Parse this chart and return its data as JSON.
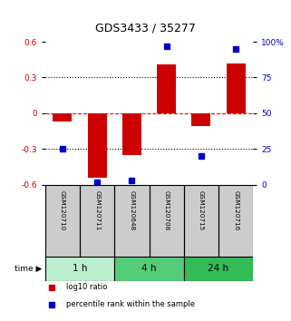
{
  "title": "GDS3433 / 35277",
  "samples": [
    "GSM120710",
    "GSM120711",
    "GSM120648",
    "GSM120708",
    "GSM120715",
    "GSM120716"
  ],
  "log10_ratio": [
    -0.07,
    -0.54,
    -0.35,
    0.41,
    -0.11,
    0.42
  ],
  "percentile_rank": [
    25,
    2,
    3,
    97,
    20,
    95
  ],
  "ylim_left": [
    -0.6,
    0.6
  ],
  "ylim_right": [
    0,
    100
  ],
  "yticks_left": [
    -0.6,
    -0.3,
    0,
    0.3,
    0.6
  ],
  "ytick_labels_left": [
    "-0.6",
    "-0.3",
    "0",
    "0.3",
    "0.6"
  ],
  "yticks_right": [
    0,
    25,
    50,
    75,
    100
  ],
  "ytick_labels_right": [
    "0",
    "25",
    "50",
    "75",
    "100%"
  ],
  "hlines": [
    0.3,
    0,
    -0.3
  ],
  "hline_styles": [
    "dotted",
    "dashed",
    "dotted"
  ],
  "hline_colors": [
    "black",
    "red",
    "black"
  ],
  "bar_color": "#cc0000",
  "dot_color": "#0000cc",
  "time_groups": [
    {
      "label": "1 h",
      "start": 0,
      "end": 2,
      "color": "#bbeecc"
    },
    {
      "label": "4 h",
      "start": 2,
      "end": 4,
      "color": "#55cc77"
    },
    {
      "label": "24 h",
      "start": 4,
      "end": 6,
      "color": "#33bb55"
    }
  ],
  "time_label": "time",
  "legend_items": [
    {
      "label": "log10 ratio",
      "color": "#cc0000",
      "marker": "s"
    },
    {
      "label": "percentile rank within the sample",
      "color": "#0000cc",
      "marker": "s"
    }
  ],
  "background_color": "#ffffff",
  "plot_bg": "#ffffff",
  "sample_bg": "#cccccc",
  "tick_label_color_left": "#cc0000",
  "tick_label_color_right": "#0000cc",
  "title_fontsize": 9,
  "bar_width": 0.55
}
